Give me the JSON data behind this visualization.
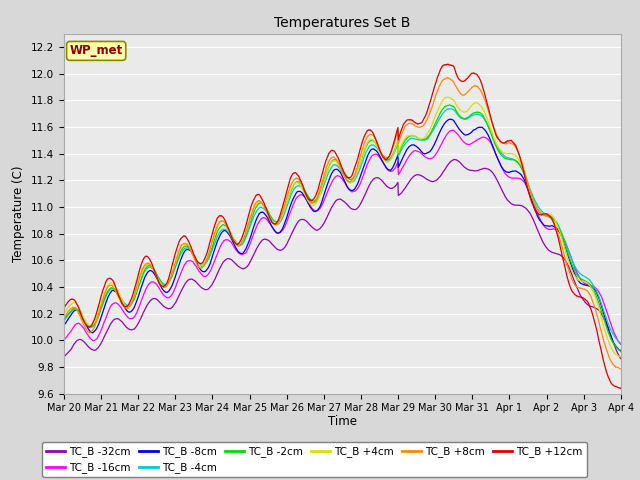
{
  "title": "Temperatures Set B",
  "xlabel": "Time",
  "ylabel": "Temperature (C)",
  "ylim": [
    9.6,
    12.3
  ],
  "n_points": 1500,
  "series_order": [
    "TC_B -32cm",
    "TC_B -16cm",
    "TC_B -8cm",
    "TC_B -4cm",
    "TC_B -2cm",
    "TC_B +4cm",
    "TC_B +8cm",
    "TC_B +12cm"
  ],
  "series": {
    "TC_B -32cm": {
      "color": "#9900bb",
      "lw": 0.9
    },
    "TC_B -16cm": {
      "color": "#ff00ff",
      "lw": 0.9
    },
    "TC_B -8cm": {
      "color": "#0000ee",
      "lw": 0.9
    },
    "TC_B -4cm": {
      "color": "#00cccc",
      "lw": 0.9
    },
    "TC_B -2cm": {
      "color": "#00dd00",
      "lw": 0.9
    },
    "TC_B +4cm": {
      "color": "#dddd00",
      "lw": 0.9
    },
    "TC_B +8cm": {
      "color": "#ff8800",
      "lw": 0.9
    },
    "TC_B +12cm": {
      "color": "#dd0000",
      "lw": 0.9
    }
  },
  "xtick_labels": [
    "Mar 20",
    "Mar 21",
    "Mar 22",
    "Mar 23",
    "Mar 24",
    "Mar 25",
    "Mar 26",
    "Mar 27",
    "Mar 28",
    "Mar 29",
    "Mar 30",
    "Mar 31",
    "Apr 1",
    "Apr 2",
    "Apr 3",
    "Apr 4"
  ],
  "annotation_text": "WP_met",
  "bg_color": "#d8d8d8",
  "plot_bg": "#eaeaea"
}
